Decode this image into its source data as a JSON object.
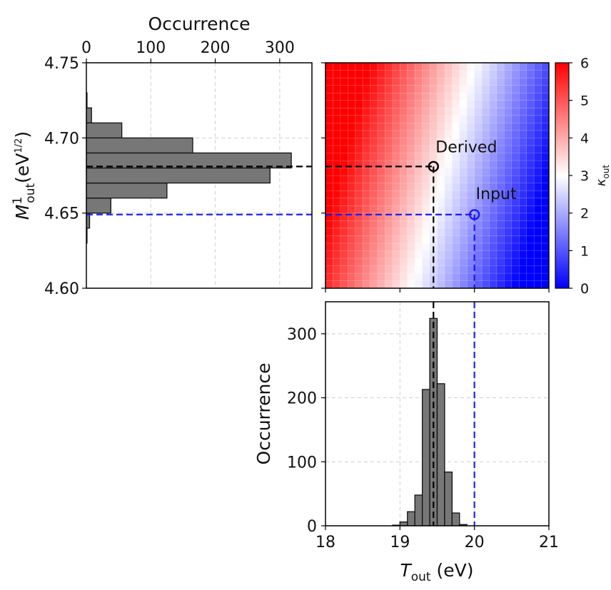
{
  "chart_data": [
    {
      "id": "left_hist",
      "type": "bar",
      "orientation": "horizontal",
      "top_axis_label": "Occurrence",
      "x_ticks": [
        "0",
        "100",
        "200",
        "300"
      ],
      "xlim": [
        0,
        350
      ],
      "y_ticks": [
        "4.60",
        "4.65",
        "4.70",
        "4.75"
      ],
      "ylim": [
        4.6,
        4.75
      ],
      "ylabel_main": "M",
      "ylabel_sup": "1",
      "ylabel_sub": "out",
      "ylabel_unit_prefix": "(eV",
      "ylabel_unit_sup": "1/2",
      "ylabel_unit_suffix": ")",
      "bins": [
        {
          "lo": 4.63,
          "hi": 4.64,
          "value": 1
        },
        {
          "lo": 4.64,
          "hi": 4.65,
          "value": 5
        },
        {
          "lo": 4.65,
          "hi": 4.66,
          "value": 38
        },
        {
          "lo": 4.66,
          "hi": 4.67,
          "value": 125
        },
        {
          "lo": 4.67,
          "hi": 4.68,
          "value": 285
        },
        {
          "lo": 4.68,
          "hi": 4.69,
          "value": 318
        },
        {
          "lo": 4.69,
          "hi": 4.7,
          "value": 165
        },
        {
          "lo": 4.7,
          "hi": 4.71,
          "value": 55
        },
        {
          "lo": 4.71,
          "hi": 4.72,
          "value": 8
        },
        {
          "lo": 4.72,
          "hi": 4.73,
          "value": 1
        }
      ],
      "derived_value": 4.681,
      "input_value": 4.649,
      "grid": true
    },
    {
      "id": "heatmap",
      "type": "heatmap",
      "xlim": [
        18,
        21
      ],
      "ylim": [
        4.6,
        4.75
      ],
      "nx": 30,
      "ny": 30,
      "colorbar": {
        "label": "κ",
        "label_sub": "out",
        "ticks": [
          "0",
          "1",
          "2",
          "3",
          "4",
          "5",
          "6"
        ],
        "range": [
          0,
          6
        ],
        "colors": [
          "#0000ff",
          "#ffffff",
          "#ff0000"
        ]
      },
      "annotations": [
        {
          "label": "Derived",
          "x": 19.45,
          "y": 4.681,
          "color": "#000000"
        },
        {
          "label": "Input",
          "x": 20.0,
          "y": 4.649,
          "color": "#1a1aee"
        }
      ]
    },
    {
      "id": "bottom_hist",
      "type": "bar",
      "orientation": "vertical",
      "x_ticks": [
        "18",
        "19",
        "20",
        "21"
      ],
      "xlim": [
        18,
        21
      ],
      "xlabel_main": "T",
      "xlabel_sub": "out",
      "xlabel_unit": " (eV)",
      "y_ticks": [
        "0",
        "100",
        "200",
        "300"
      ],
      "ylim": [
        0,
        350
      ],
      "ylabel": "Occurrence",
      "bins": [
        {
          "lo": 18.9,
          "hi": 19.0,
          "value": 1
        },
        {
          "lo": 19.0,
          "hi": 19.1,
          "value": 6
        },
        {
          "lo": 19.1,
          "hi": 19.2,
          "value": 22
        },
        {
          "lo": 19.2,
          "hi": 19.3,
          "value": 48
        },
        {
          "lo": 19.3,
          "hi": 19.4,
          "value": 213
        },
        {
          "lo": 19.4,
          "hi": 19.5,
          "value": 324
        },
        {
          "lo": 19.5,
          "hi": 19.6,
          "value": 222
        },
        {
          "lo": 19.6,
          "hi": 19.7,
          "value": 84
        },
        {
          "lo": 19.7,
          "hi": 19.8,
          "value": 20
        },
        {
          "lo": 19.8,
          "hi": 19.9,
          "value": 2
        }
      ],
      "derived_value": 19.45,
      "input_value": 20.0,
      "grid": true
    }
  ]
}
